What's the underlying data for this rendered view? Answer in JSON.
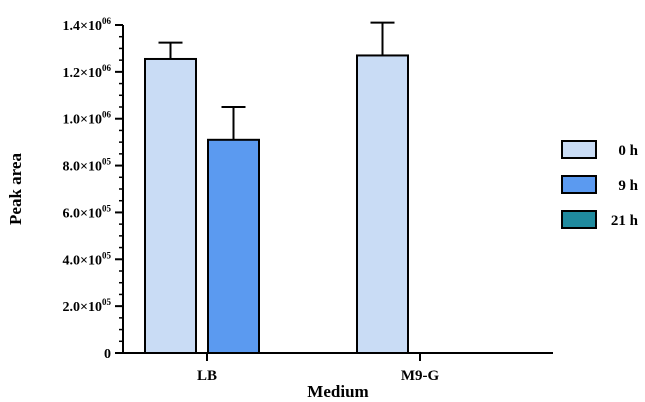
{
  "chart_data": {
    "type": "bar",
    "xlabel": "Medium",
    "ylabel": "Peak area",
    "ylim": [
      0,
      1400000
    ],
    "yticks": [
      {
        "value": 0,
        "mant": "0",
        "exp": ""
      },
      {
        "value": 200000,
        "mant": "2.0×10",
        "exp": "05"
      },
      {
        "value": 400000,
        "mant": "4.0×10",
        "exp": "05"
      },
      {
        "value": 600000,
        "mant": "6.0×10",
        "exp": "05"
      },
      {
        "value": 800000,
        "mant": "8.0×10",
        "exp": "05"
      },
      {
        "value": 1000000,
        "mant": "1.0×10",
        "exp": "06"
      },
      {
        "value": 1200000,
        "mant": "1.2×10",
        "exp": "06"
      },
      {
        "value": 1400000,
        "mant": "1.4×10",
        "exp": "06"
      }
    ],
    "categories": [
      "LB",
      "M9-G"
    ],
    "series": [
      {
        "name": "0 h",
        "color": "#c9dcf5",
        "values": [
          1255000,
          1270000
        ],
        "errors": [
          70000,
          140000
        ]
      },
      {
        "name": "9 h",
        "color": "#5b9af0",
        "values": [
          910000,
          0
        ],
        "errors": [
          140000,
          0
        ]
      },
      {
        "name": "21 h",
        "color": "#1f8a9e",
        "values": [
          0,
          0
        ],
        "errors": [
          0,
          0
        ]
      }
    ],
    "legend_position": "right",
    "grid": false
  }
}
